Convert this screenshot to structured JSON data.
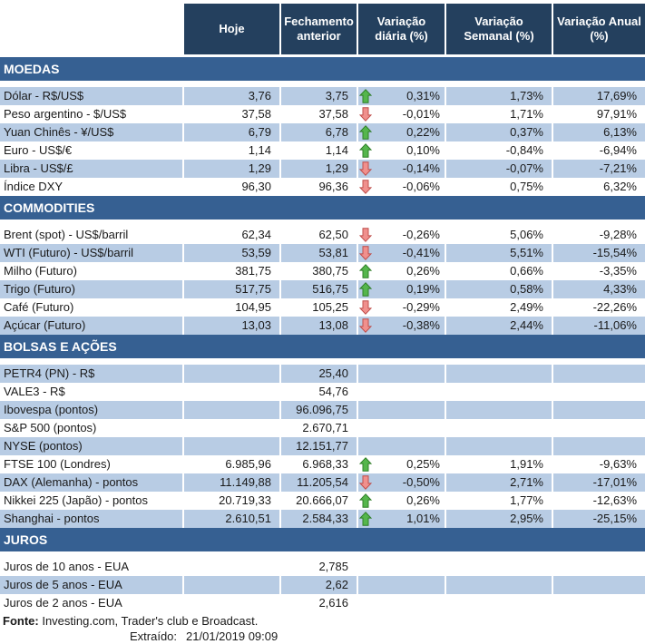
{
  "header": {
    "columns": [
      "Hoje",
      "Fechamento anterior",
      "Variação diária (%)",
      "Variação Semanal (%)",
      "Variação Anual (%)"
    ]
  },
  "sections": [
    {
      "title": "MOEDAS",
      "rows": [
        {
          "label": "Dólar - R$/US$",
          "hoje": "3,76",
          "fechamento": "3,75",
          "arrow": "up",
          "diaria": "0,31%",
          "semanal": "1,73%",
          "anual": "17,69%"
        },
        {
          "label": "Peso argentino - $/US$",
          "hoje": "37,58",
          "fechamento": "37,58",
          "arrow": "down",
          "diaria": "-0,01%",
          "semanal": "1,71%",
          "anual": "97,91%"
        },
        {
          "label": "Yuan Chinês - ¥/US$",
          "hoje": "6,79",
          "fechamento": "6,78",
          "arrow": "up",
          "diaria": "0,22%",
          "semanal": "0,37%",
          "anual": "6,13%"
        },
        {
          "label": "Euro - US$/€",
          "hoje": "1,14",
          "fechamento": "1,14",
          "arrow": "up",
          "diaria": "0,10%",
          "semanal": "-0,84%",
          "anual": "-6,94%"
        },
        {
          "label": "Libra - US$/£",
          "hoje": "1,29",
          "fechamento": "1,29",
          "arrow": "down",
          "diaria": "-0,14%",
          "semanal": "-0,07%",
          "anual": "-7,21%"
        },
        {
          "label": "Índice DXY",
          "hoje": "96,30",
          "fechamento": "96,36",
          "arrow": "down",
          "diaria": "-0,06%",
          "semanal": "0,75%",
          "anual": "6,32%"
        }
      ]
    },
    {
      "title": "COMMODITIES",
      "rows": [
        {
          "label": "Brent (spot) - US$/barril",
          "hoje": "62,34",
          "fechamento": "62,50",
          "arrow": "down",
          "diaria": "-0,26%",
          "semanal": "5,06%",
          "anual": "-9,28%"
        },
        {
          "label": "WTI (Futuro) - US$/barril",
          "hoje": "53,59",
          "fechamento": "53,81",
          "arrow": "down",
          "diaria": "-0,41%",
          "semanal": "5,51%",
          "anual": "-15,54%"
        },
        {
          "label": "Milho (Futuro)",
          "hoje": "381,75",
          "fechamento": "380,75",
          "arrow": "up",
          "diaria": "0,26%",
          "semanal": "0,66%",
          "anual": "-3,35%"
        },
        {
          "label": "Trigo (Futuro)",
          "hoje": "517,75",
          "fechamento": "516,75",
          "arrow": "up",
          "diaria": "0,19%",
          "semanal": "0,58%",
          "anual": "4,33%"
        },
        {
          "label": "Café (Futuro)",
          "hoje": "104,95",
          "fechamento": "105,25",
          "arrow": "down",
          "diaria": "-0,29%",
          "semanal": "2,49%",
          "anual": "-22,26%"
        },
        {
          "label": "Açúcar (Futuro)",
          "hoje": "13,03",
          "fechamento": "13,08",
          "arrow": "down",
          "diaria": "-0,38%",
          "semanal": "2,44%",
          "anual": "-11,06%"
        }
      ]
    },
    {
      "title": "BOLSAS E AÇÕES",
      "rows": [
        {
          "label": "PETR4 (PN) - R$",
          "hoje": "",
          "fechamento": "25,40",
          "arrow": null,
          "diaria": "",
          "semanal": "",
          "anual": ""
        },
        {
          "label": "VALE3 - R$",
          "hoje": "",
          "fechamento": "54,76",
          "arrow": null,
          "diaria": "",
          "semanal": "",
          "anual": ""
        },
        {
          "label": "Ibovespa (pontos)",
          "hoje": "",
          "fechamento": "96.096,75",
          "arrow": null,
          "diaria": "",
          "semanal": "",
          "anual": ""
        },
        {
          "label": "S&P 500 (pontos)",
          "hoje": "",
          "fechamento": "2.670,71",
          "arrow": null,
          "diaria": "",
          "semanal": "",
          "anual": ""
        },
        {
          "label": "NYSE (pontos)",
          "hoje": "",
          "fechamento": "12.151,77",
          "arrow": null,
          "diaria": "",
          "semanal": "",
          "anual": ""
        },
        {
          "label": "FTSE 100 (Londres)",
          "hoje": "6.985,96",
          "fechamento": "6.968,33",
          "arrow": "up",
          "diaria": "0,25%",
          "semanal": "1,91%",
          "anual": "-9,63%"
        },
        {
          "label": "DAX (Alemanha) - pontos",
          "hoje": "11.149,88",
          "fechamento": "11.205,54",
          "arrow": "down",
          "diaria": "-0,50%",
          "semanal": "2,71%",
          "anual": "-17,01%"
        },
        {
          "label": "Nikkei 225 (Japão) - pontos",
          "hoje": "20.719,33",
          "fechamento": "20.666,07",
          "arrow": "up",
          "diaria": "0,26%",
          "semanal": "1,77%",
          "anual": "-12,63%"
        },
        {
          "label": "Shanghai - pontos",
          "hoje": "2.610,51",
          "fechamento": "2.584,33",
          "arrow": "up",
          "diaria": "1,01%",
          "semanal": "2,95%",
          "anual": "-25,15%"
        }
      ]
    },
    {
      "title": "JUROS",
      "rows": [
        {
          "label": "Juros de 10 anos - EUA",
          "hoje": "",
          "fechamento": "2,785",
          "arrow": null,
          "diaria": "",
          "semanal": "",
          "anual": ""
        },
        {
          "label": "Juros de 5 anos - EUA",
          "hoje": "",
          "fechamento": "2,62",
          "arrow": null,
          "diaria": "",
          "semanal": "",
          "anual": ""
        },
        {
          "label": "Juros de 2 anos - EUA",
          "hoje": "",
          "fechamento": "2,616",
          "arrow": null,
          "diaria": "",
          "semanal": "",
          "anual": ""
        }
      ]
    }
  ],
  "footer": {
    "source_label": "Fonte:",
    "source_text": " Investing.com, Trader's club e Broadcast.",
    "extracted_label": "Extraído:",
    "extracted_value": "21/01/2019 09:09"
  },
  "icons": {
    "positive_change": "up-arrow-icon",
    "negative_change": "down-arrow-icon"
  },
  "colors": {
    "header_bg": "#24405E",
    "section_bg": "#366092",
    "row_alt_bg": "#B8CCE4",
    "up_arrow": "#55B64C",
    "up_arrow_border": "#2D7D26",
    "down_arrow": "#F0908D",
    "down_arrow_border": "#BE4B48"
  }
}
